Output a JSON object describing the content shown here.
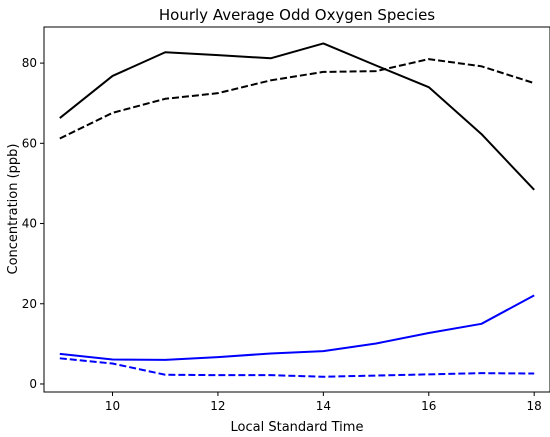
{
  "chart_data": {
    "type": "line",
    "title": "Hourly Average Odd Oxygen Species",
    "xlabel": "Local Standard Time",
    "ylabel": "Concentration (ppb)",
    "xlim": [
      8.7,
      18.3
    ],
    "ylim": [
      -2,
      89
    ],
    "xticks": [
      10,
      12,
      14,
      16,
      18
    ],
    "yticks": [
      0,
      20,
      40,
      60,
      80
    ],
    "x": [
      9,
      10,
      11,
      12,
      13,
      14,
      15,
      16,
      17,
      18
    ],
    "series": [
      {
        "color": "#000000",
        "dash": "solid",
        "values": [
          66.3,
          76.8,
          82.7,
          82.0,
          81.2,
          84.9,
          79.4,
          74.0,
          62.3,
          48.4
        ]
      },
      {
        "color": "#000000",
        "dash": "dashed",
        "values": [
          61.2,
          67.6,
          71.1,
          72.5,
          75.7,
          77.8,
          78.0,
          81.0,
          79.2,
          75.0
        ]
      },
      {
        "color": "#0000ff",
        "dash": "solid",
        "values": [
          7.5,
          6.1,
          6.0,
          6.7,
          7.6,
          8.2,
          10.1,
          12.7,
          15.0,
          22.1
        ]
      },
      {
        "color": "#0000ff",
        "dash": "dashed",
        "values": [
          6.4,
          5.1,
          2.3,
          2.2,
          2.2,
          1.8,
          2.1,
          2.4,
          2.7,
          2.6
        ]
      }
    ]
  }
}
